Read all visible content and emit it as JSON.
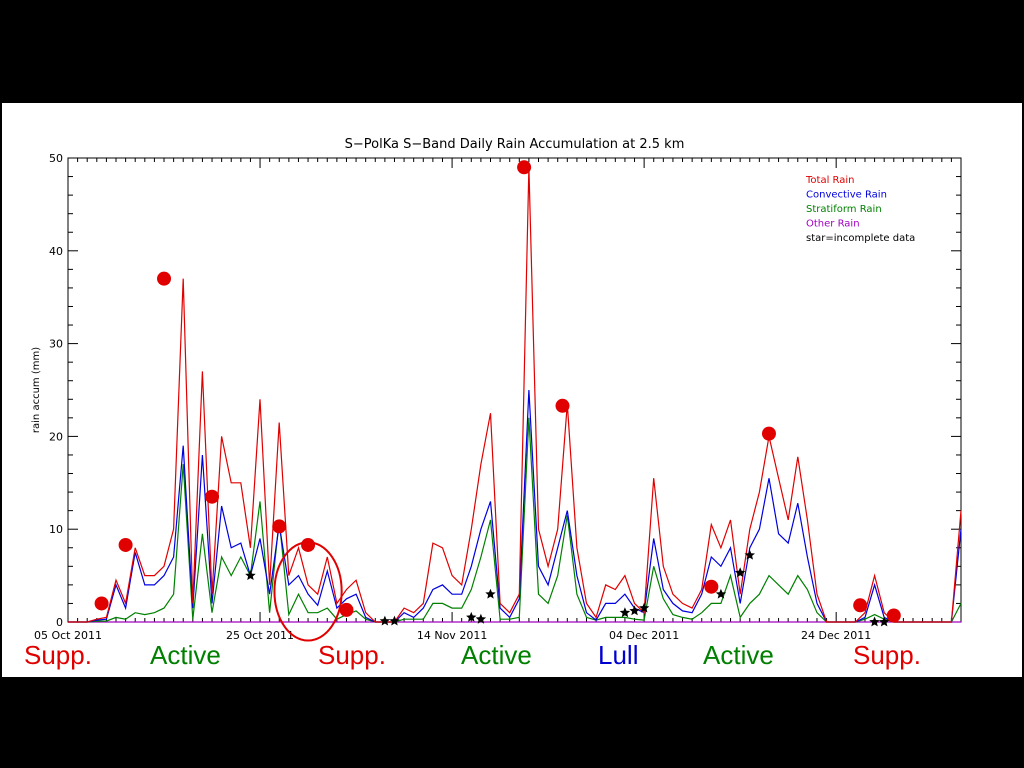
{
  "chart_data": {
    "type": "line",
    "title": "S−PolKa S−Band Daily Rain Accumulation at 2.5 km",
    "ylabel": "rain accum (mm)",
    "xlabel": "",
    "xlim": [
      0,
      93
    ],
    "ylim": [
      0,
      50
    ],
    "yticks": [
      0,
      10,
      20,
      30,
      40,
      50
    ],
    "xticks": [
      {
        "day": 0,
        "label": "05 Oct 2011"
      },
      {
        "day": 20,
        "label": "25 Oct 2011"
      },
      {
        "day": 40,
        "label": "14 Nov 2011"
      },
      {
        "day": 60,
        "label": "04 Dec 2011"
      },
      {
        "day": 80,
        "label": "24 Dec 2011"
      }
    ],
    "grid": false,
    "legend_position": "top-right",
    "series": [
      {
        "name": "Total Rain",
        "color": "#e00000",
        "values": [
          0,
          0,
          0,
          0.3,
          0.5,
          4.5,
          2,
          8,
          5,
          5,
          6,
          10,
          37,
          2,
          27,
          3,
          20,
          15,
          15,
          8,
          24,
          4,
          21.5,
          5,
          8,
          4,
          3,
          7,
          2,
          3.5,
          4.5,
          1,
          0,
          0,
          0,
          1.5,
          1,
          2,
          8.5,
          8,
          5,
          4,
          10,
          17,
          22.5,
          2,
          1,
          3,
          49,
          10,
          6,
          10,
          23.5,
          8,
          2,
          0.5,
          4,
          3.5,
          5,
          2,
          1,
          15.5,
          6,
          3,
          2,
          1.5,
          3.5,
          10.5,
          8,
          11,
          3,
          10,
          14,
          20,
          15.5,
          11,
          17.8,
          11,
          3,
          0,
          0,
          0,
          0,
          1,
          5,
          1,
          0,
          0,
          0,
          0,
          0,
          0,
          0,
          12
        ]
      },
      {
        "name": "Convective Rain",
        "color": "#0000e0",
        "values": [
          0,
          0,
          0,
          0.2,
          0.3,
          4,
          1.5,
          7.5,
          4,
          4,
          5,
          7,
          19,
          1.5,
          18,
          2,
          12.5,
          8,
          8.5,
          5,
          9,
          3,
          10.5,
          4,
          5,
          3,
          1.8,
          5.5,
          1.5,
          2.5,
          3,
          0.5,
          0,
          0,
          0,
          1,
          0.5,
          1.5,
          3.5,
          4,
          3,
          3,
          6,
          10,
          13,
          1.5,
          0.5,
          2.5,
          25,
          6,
          4,
          8,
          12,
          5,
          1,
          0.2,
          2,
          2,
          3,
          1.5,
          1,
          9,
          3.5,
          2,
          1.2,
          1,
          3,
          7,
          6,
          8,
          2,
          8,
          10,
          15.5,
          9.5,
          8.5,
          12.8,
          7,
          2,
          0,
          0,
          0,
          0,
          0.5,
          4,
          0.5,
          0,
          0,
          0,
          0,
          0,
          0,
          0,
          10
        ]
      },
      {
        "name": "Stratiform Rain",
        "color": "#008000",
        "values": [
          0,
          0,
          0,
          0.1,
          0.1,
          0.5,
          0.3,
          1,
          0.8,
          1,
          1.5,
          3,
          17,
          0.3,
          9.5,
          1,
          7,
          5,
          7,
          5,
          13,
          1,
          11,
          0.8,
          3,
          1,
          1,
          1.5,
          0.3,
          0.8,
          1.2,
          0.3,
          0,
          0,
          0,
          0.3,
          0.3,
          0.3,
          2,
          2,
          1.5,
          1.5,
          3.5,
          7,
          11,
          0.3,
          0.3,
          0.5,
          22,
          3,
          2,
          5,
          11.5,
          3,
          0.5,
          0.2,
          0.5,
          0.5,
          0.5,
          0.3,
          0.2,
          6,
          2.5,
          0.8,
          0.5,
          0.3,
          1,
          2,
          2,
          5,
          0.5,
          2,
          3,
          5,
          4,
          3,
          5,
          3.5,
          1,
          0,
          0,
          0,
          0,
          0.3,
          0.8,
          0.3,
          0,
          0,
          0,
          0,
          0,
          0,
          0,
          2
        ]
      },
      {
        "name": "Other Rain",
        "color": "#a000c0",
        "values": [
          0,
          0,
          0,
          0,
          0,
          0,
          0,
          0,
          0,
          0,
          0,
          0,
          0,
          0,
          0,
          0,
          0,
          0,
          0,
          0,
          0,
          0,
          0,
          0,
          0,
          0,
          0,
          0,
          0,
          0,
          0,
          0,
          0,
          0,
          0,
          0,
          0,
          0,
          0,
          0,
          0,
          0,
          0,
          0,
          0,
          0,
          0,
          0,
          0,
          0,
          0,
          0,
          0,
          0,
          0,
          0,
          0,
          0,
          0,
          0,
          0,
          0,
          0,
          0,
          0,
          0,
          0,
          0,
          0,
          0,
          0,
          0,
          0,
          0,
          0,
          0,
          0,
          0,
          0,
          0,
          0,
          0,
          0,
          0,
          0,
          0,
          0,
          0,
          0,
          0,
          0,
          0,
          0,
          0
        ]
      }
    ],
    "legend_note": "star=incomplete data",
    "stars": [
      [
        19,
        5
      ],
      [
        33,
        0.1
      ],
      [
        34,
        0.1
      ],
      [
        42,
        0.5
      ],
      [
        43,
        0.3
      ],
      [
        44,
        3
      ],
      [
        58,
        1
      ],
      [
        59,
        1.2
      ],
      [
        60,
        1.5
      ],
      [
        68,
        3
      ],
      [
        70,
        5.3
      ],
      [
        71,
        7.2
      ],
      [
        84,
        0
      ],
      [
        85,
        0
      ]
    ],
    "highlight_dots": [
      [
        3.5,
        2
      ],
      [
        6,
        8.3
      ],
      [
        10,
        37
      ],
      [
        15,
        13.5
      ],
      [
        22,
        10.3
      ],
      [
        25,
        8.3
      ],
      [
        29,
        1.3
      ],
      [
        47.5,
        49
      ],
      [
        51.5,
        23.3
      ],
      [
        67,
        3.8
      ],
      [
        73,
        20.3
      ],
      [
        82.5,
        1.8
      ],
      [
        86,
        0.7
      ]
    ],
    "highlight_color": "#e00000",
    "ellipse": {
      "center_day": 25,
      "center_value": 3.3,
      "radius_days": 3.5,
      "radius_value": 5.3,
      "color": "#e00000"
    }
  },
  "phases": [
    {
      "label": "Supp.",
      "color": "#e00000"
    },
    {
      "label": "Active",
      "color": "#008000"
    },
    {
      "label": "Supp.",
      "color": "#e00000"
    },
    {
      "label": "Active",
      "color": "#008000"
    },
    {
      "label": "Lull",
      "color": "#0000d0"
    },
    {
      "label": "Active",
      "color": "#008000"
    },
    {
      "label": "Supp.",
      "color": "#e00000"
    }
  ]
}
